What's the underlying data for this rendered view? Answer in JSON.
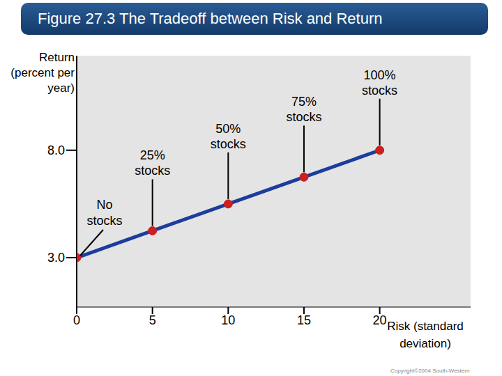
{
  "chart_data": {
    "type": "line",
    "title": "Figure 27.3 The Tradeoff between Risk and Return",
    "x_label": "Risk (standard deviation)",
    "y_label": "Return (percent per year)",
    "x": [
      0,
      5,
      10,
      15,
      20
    ],
    "values": [
      3,
      4.25,
      5.5,
      6.75,
      8
    ],
    "point_labels": [
      "No stocks",
      "25% stocks",
      "50% stocks",
      "75% stocks",
      "100% stocks"
    ],
    "color": "#1c3d9c",
    "marker": "circle",
    "xlim": [
      0,
      26
    ],
    "xticks": [
      0,
      5,
      10,
      15,
      20
    ],
    "ylim": [
      0.7,
      12.4
    ],
    "yticks": [
      {
        "value": 3,
        "label": "3.0"
      },
      {
        "value": 8,
        "label": "8.0"
      }
    ],
    "grid": false,
    "copyright": "Copyright©2004 South-Western"
  }
}
